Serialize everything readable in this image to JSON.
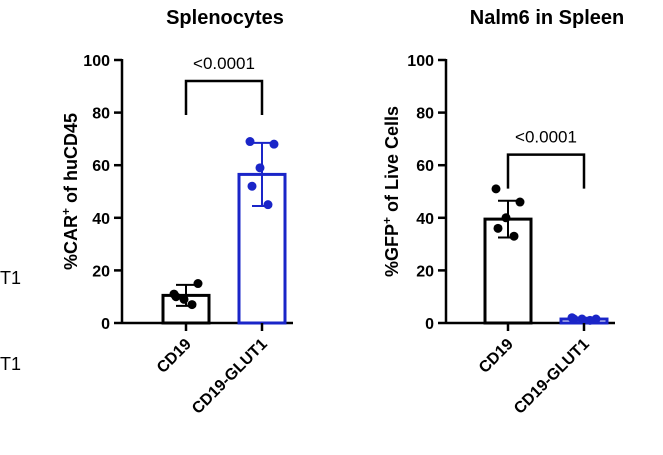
{
  "stray_labels": [
    "T1",
    "T1"
  ],
  "colors": {
    "control": "#000000",
    "treatment": "#1a25c8"
  },
  "chart_data": [
    {
      "type": "bar",
      "title": "Splenocytes",
      "ylabel_main": "%CAR",
      "ylabel_sup": "+",
      "ylabel_rest": " of huCD45",
      "xlabel": "",
      "ylim": [
        0,
        100
      ],
      "yticks": [
        0,
        20,
        40,
        60,
        80,
        100
      ],
      "categories": [
        "CD19",
        "CD19-GLUT1"
      ],
      "values": [
        10.5,
        56.5
      ],
      "errors": [
        4,
        12
      ],
      "points": [
        [
          11,
          15,
          9,
          10,
          7
        ],
        [
          69,
          68,
          59,
          52,
          45
        ]
      ],
      "significance": {
        "label": "<0.0001",
        "y": 92
      }
    },
    {
      "type": "bar",
      "title": "Nalm6 in Spleen",
      "ylabel_main": "%GFP",
      "ylabel_sup": "+",
      "ylabel_rest": " of Live Cells",
      "xlabel": "",
      "ylim": [
        0,
        100
      ],
      "yticks": [
        0,
        20,
        40,
        60,
        80,
        100
      ],
      "categories": [
        "CD19",
        "CD19-GLUT1"
      ],
      "values": [
        39.5,
        1.5
      ],
      "errors": [
        7,
        0.5
      ],
      "points": [
        [
          51,
          46,
          40,
          36,
          33
        ],
        [
          2,
          1.5,
          1.5,
          1.5,
          1
        ]
      ],
      "significance": {
        "label": "<0.0001",
        "y": 64
      }
    }
  ]
}
